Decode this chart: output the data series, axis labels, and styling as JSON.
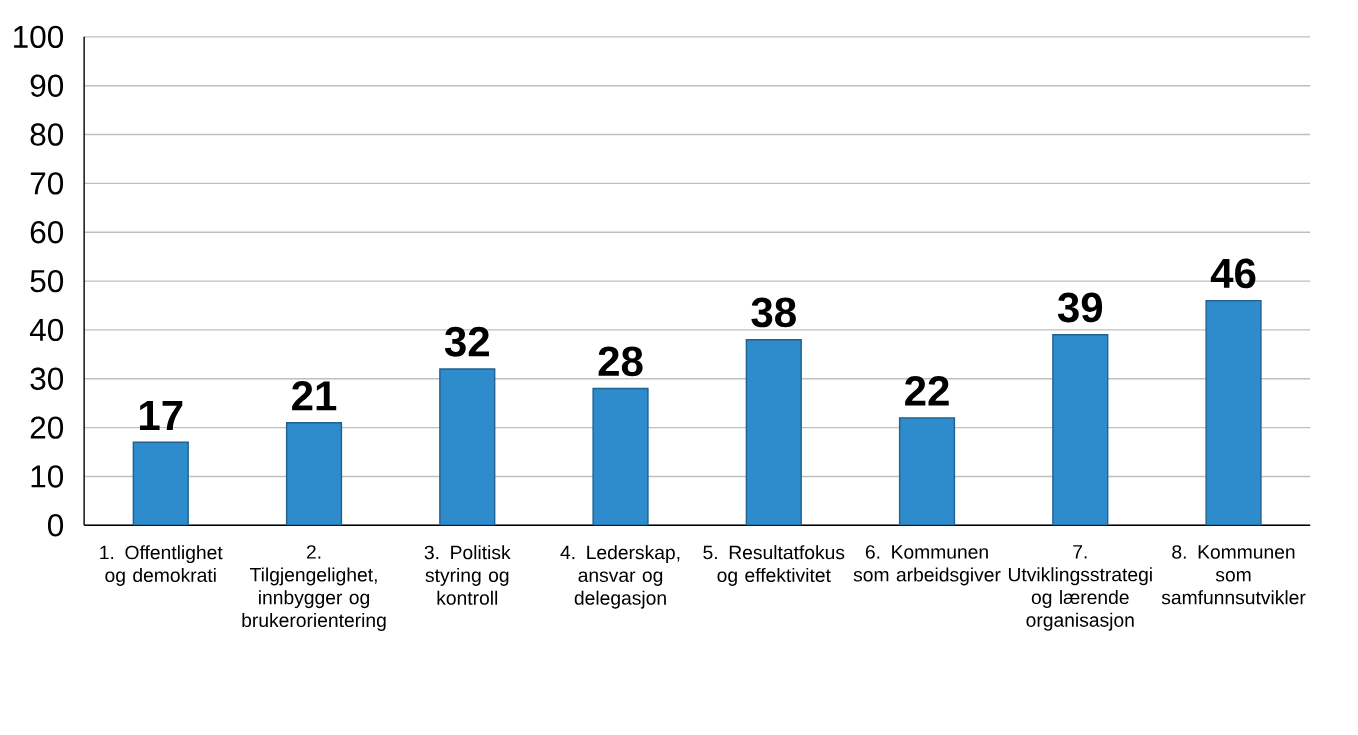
{
  "chart_data": {
    "type": "bar",
    "categories": [
      "1. Offentlighet og demokrati",
      "2. Tilgjengelighet, innbygger og brukerorientering",
      "3. Politisk styring og kontroll",
      "4. Lederskap, ansvar og delegasjon",
      "5. Resultatfokus og effektivitet",
      "6. Kommunen som arbeidsgiver",
      "7. Utviklingsstrategi og lærende organisasjon",
      "8. Kommunen som samfunnsutvikler"
    ],
    "values": [
      17,
      21,
      32,
      28,
      38,
      22,
      39,
      46
    ],
    "color": "#2e8bcc",
    "ylim": [
      0,
      100
    ],
    "yticks": [
      0,
      10,
      20,
      30,
      40,
      50,
      60,
      70,
      80,
      90,
      100
    ],
    "grid": "y",
    "data_labels": true
  }
}
